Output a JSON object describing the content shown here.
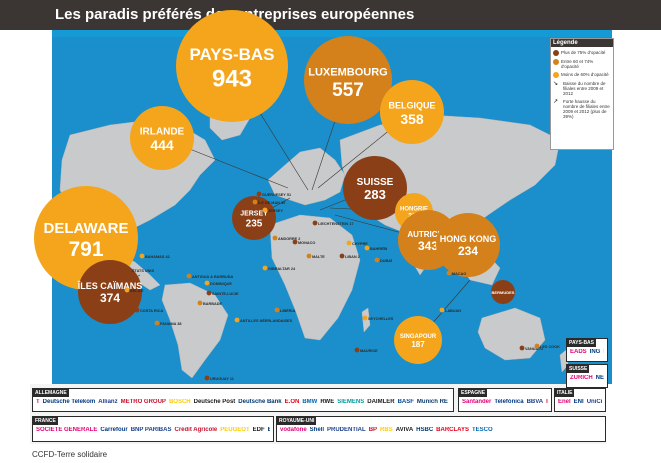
{
  "title": "Les paradis préférés des entreprises européennes",
  "legend": {
    "title": "Légende",
    "items": [
      {
        "label": "Plus de 75% d'opacité",
        "color": "#8a3f17"
      },
      {
        "label": "Entre 60 et 74% d'opacité",
        "color": "#d4811b"
      },
      {
        "label": "Moins de 60% d'opacité",
        "color": "#f4a51c"
      },
      {
        "label": "Baisse du nombre de filiales entre 2009 et 2012",
        "icon": "arrow-down-icon"
      },
      {
        "label": "Forte hausse du nombre de filiales entre 2009 et 2012 (plus de 39%)",
        "icon": "arrow-up-icon"
      }
    ]
  },
  "big_bubbles": [
    {
      "name": "PAYS-BAS",
      "value": "943",
      "color": "#f4a51c"
    },
    {
      "name": "LUXEMBOURG",
      "value": "557",
      "color": "#d4811b"
    },
    {
      "name": "BELGIQUE",
      "value": "358",
      "color": "#f4a51c"
    },
    {
      "name": "IRLANDE",
      "value": "444",
      "color": "#f4a51c"
    },
    {
      "name": "DELAWARE",
      "value": "791",
      "color": "#f4a51c"
    },
    {
      "name": "ÎLES CAÏMANS",
      "value": "374",
      "color": "#8a3f17"
    },
    {
      "name": "SUISSE",
      "value": "283",
      "color": "#8a3f17"
    },
    {
      "name": "JERSEY",
      "value": "235",
      "color": "#8a3f17"
    },
    {
      "name": "HONGRIE",
      "value": "223",
      "color": "#f4a51c"
    },
    {
      "name": "AUTRICHE",
      "value": "343",
      "color": "#d4811b"
    },
    {
      "name": "HONG KONG",
      "value": "234",
      "color": "#d4811b"
    },
    {
      "name": "SINGAPOUR",
      "value": "187",
      "color": "#f4a51c"
    },
    {
      "name": "BERMUDES",
      "value": "",
      "color": "#8a3f17"
    }
  ],
  "small_labels": [
    "GUERNESEY 51",
    "ÎLE DE MAN 30",
    "JERSEY",
    "LIECHTENSTEIN 17",
    "ANDORRE 2",
    "GIBRALTAR 24",
    "MONACO",
    "MALTE",
    "CHYPRE",
    "LIBAN 2",
    "DUBAÏ",
    "BAHAMAS 42",
    "ÉTATS UNIS",
    "ANTIGUA & BARBUDA",
    "DOMINIQUE",
    "SAINTE-LUCIE",
    "BARBADE",
    "BÉLIZE",
    "COSTA RICA",
    "PANAMA 38",
    "ANTILLES NÉERLANDAISES",
    "URUGUAY 11",
    "LIBÉRIA",
    "SEYCHELLES",
    "MAURICE",
    "MACAO",
    "LABUAN",
    "VANUATU",
    "LES COOK",
    "BAHREÏN"
  ],
  "logo_boxes": [
    {
      "country": "ALLEMAGNE",
      "logos": [
        "T",
        "Deutsche Telekom",
        "Allianz",
        "METRO GROUP",
        "BOSCH",
        "Deutsche Post",
        "Deutsche Bank",
        "E.ON",
        "BMW",
        "RWE",
        "SIEMENS",
        "DAIMLER",
        "BASF",
        "Munich RE"
      ]
    },
    {
      "country": "ESPAGNE",
      "logos": [
        "Santander",
        "Telefónica",
        "BBVA",
        "IBERDROLA"
      ]
    },
    {
      "country": "ITALIE",
      "logos": [
        "Enel",
        "ENI",
        "UniCredit"
      ]
    },
    {
      "country": "FRANCE",
      "logos": [
        "SOCIÉTÉ GÉNÉRALE",
        "Carrefour",
        "BNP PARIBAS",
        "Crédit Agricole",
        "PEUGEOT",
        "EDF",
        "BPCE",
        "AXA",
        "Crédit Agricole",
        "TOTAL"
      ]
    },
    {
      "country": "ROYAUME-UNI",
      "logos": [
        "vodafone",
        "Shell",
        "PRUDENTIAL",
        "BP",
        "RBS",
        "AVIVA",
        "HSBC",
        "BARCLAYS",
        "TESCO"
      ]
    },
    {
      "country": "PAYS-BAS",
      "logos": [
        "EADS",
        "ING",
        "Shell"
      ]
    },
    {
      "country": "SUISSE",
      "logos": [
        "ZURICH",
        "NESTLÉ",
        "GLENCORE"
      ]
    }
  ],
  "source": "CCFD-Terre solidaire"
}
